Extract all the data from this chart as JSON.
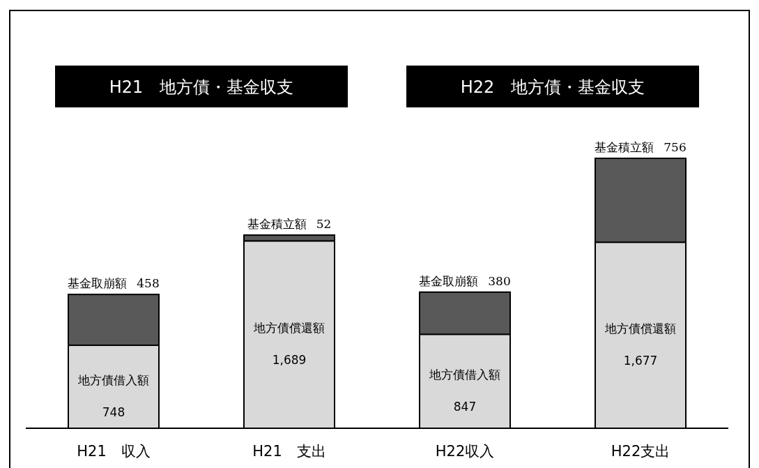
{
  "chart_data": {
    "type": "bar",
    "stacked": true,
    "categories": [
      "H21　収入",
      "H21　支出",
      "H22収入",
      "H22支出"
    ],
    "annotations": [
      "H21　地方債・基金収支",
      "H22　地方債・基金収支"
    ],
    "series": [
      {
        "name": "地方債借入額",
        "color": "#d9d9d9",
        "values": [
          748,
          null,
          847,
          null
        ],
        "value_labels": [
          "748",
          null,
          "847",
          null
        ]
      },
      {
        "name": "地方債償還額",
        "color": "#d9d9d9",
        "values": [
          null,
          1689,
          null,
          1677
        ],
        "value_labels": [
          null,
          "1,689",
          null,
          "1,677"
        ]
      },
      {
        "name": "基金取崩額",
        "color": "#595959",
        "values": [
          458,
          null,
          380,
          null
        ],
        "value_labels": [
          "458",
          null,
          "380",
          null
        ]
      },
      {
        "name": "基金積立額",
        "color": "#595959",
        "values": [
          null,
          52,
          null,
          756
        ],
        "value_labels": [
          null,
          "52",
          null,
          "756"
        ]
      }
    ]
  }
}
